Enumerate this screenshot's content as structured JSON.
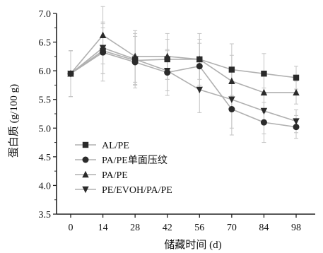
{
  "chart_data": {
    "type": "line",
    "xlabel": "储藏时间 (d)",
    "ylabel": "蛋白质 (g/100 g)",
    "x": [
      0,
      14,
      28,
      42,
      56,
      70,
      84,
      98
    ],
    "x_ticks": [
      "0",
      "14",
      "28",
      "42",
      "56",
      "70",
      "84",
      "98"
    ],
    "y_ticks": [
      "3.5",
      "4.0",
      "4.5",
      "5.0",
      "5.5",
      "6.0",
      "6.5",
      "7.0"
    ],
    "ylim": [
      3.5,
      7.0
    ],
    "grid": false,
    "legend_position": "lower-left",
    "series": [
      {
        "name": "AL/PE",
        "marker": "square",
        "values": [
          5.95,
          6.35,
          6.18,
          6.2,
          6.2,
          6.02,
          5.95,
          5.88
        ],
        "errors": [
          0.4,
          0.4,
          0.42,
          0.35,
          0.35,
          0.45,
          0.35,
          0.2
        ]
      },
      {
        "name": "PA/PE单面压纹",
        "marker": "circle",
        "values": [
          5.95,
          6.32,
          6.15,
          5.97,
          6.08,
          5.33,
          5.1,
          5.02
        ],
        "errors": [
          0.4,
          0.5,
          0.45,
          0.4,
          0.4,
          0.45,
          0.35,
          0.2
        ]
      },
      {
        "name": "PA/PE",
        "marker": "triangle",
        "values": [
          5.95,
          6.62,
          6.25,
          6.25,
          6.2,
          5.82,
          5.62,
          5.62
        ],
        "errors": [
          0.4,
          0.5,
          0.45,
          0.4,
          0.45,
          0.45,
          0.35,
          0.2
        ]
      },
      {
        "name": "PE/EVOH/PA/PE",
        "marker": "triangle-down",
        "values": [
          5.95,
          6.4,
          6.2,
          6.0,
          5.67,
          5.5,
          5.3,
          5.12
        ],
        "errors": [
          0.4,
          0.45,
          0.45,
          0.35,
          0.4,
          0.5,
          0.4,
          0.2
        ]
      }
    ]
  },
  "colors": {
    "line": "#b0b0b0",
    "error_bar": "#c4c4c4",
    "marker": "#2b2b2b",
    "axis": "#222222"
  }
}
